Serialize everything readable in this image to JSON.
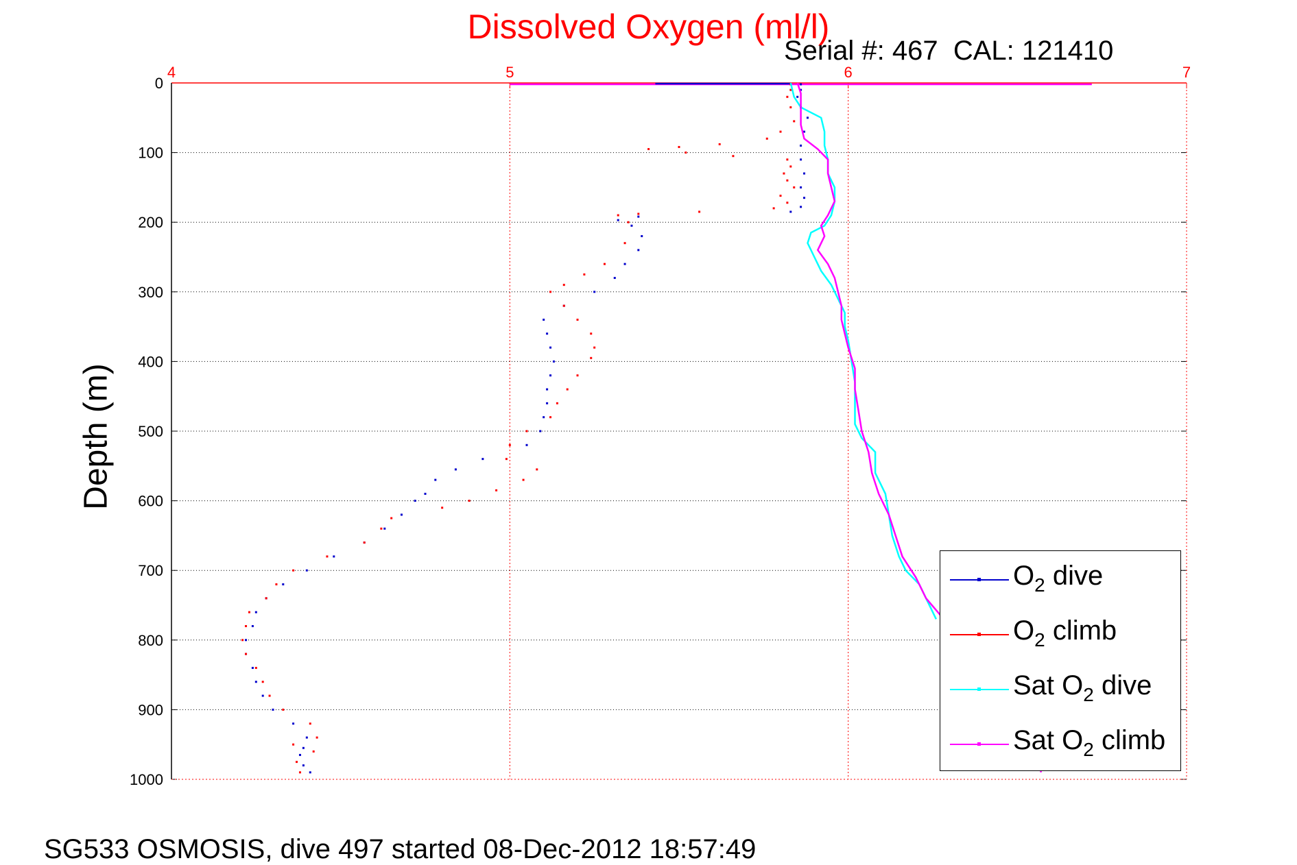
{
  "chart_data": {
    "type": "scatter",
    "title": "Dissolved Oxygen (ml/l)",
    "subtitle": "Serial #: 467  CAL: 121410",
    "ylabel": "Depth (m)",
    "footer": "SG533 OSMOSIS, dive 497 started 08-Dec-2012 18:57:49",
    "xlim": [
      4,
      7
    ],
    "ylim": [
      0,
      1000
    ],
    "y_reversed": true,
    "x_axis_position": "top",
    "x_ticks": [
      4,
      5,
      6,
      7
    ],
    "x_tick_labels": [
      "4",
      "5",
      "6",
      "7"
    ],
    "y_ticks": [
      0,
      100,
      200,
      300,
      400,
      500,
      600,
      700,
      800,
      900,
      1000
    ],
    "y_tick_labels": [
      "0",
      "100",
      "200",
      "300",
      "400",
      "500",
      "600",
      "700",
      "800",
      "900",
      "1000"
    ],
    "grid": true,
    "legend_position": "bottom-right",
    "series": [
      {
        "name": "O2 dive",
        "legend_base": "O",
        "legend_sub": "2",
        "legend_rest": " dive",
        "color": "#0000cc",
        "style": "dots",
        "points": [
          [
            5.86,
            2
          ],
          [
            5.86,
            10
          ],
          [
            5.85,
            20
          ],
          [
            5.86,
            35
          ],
          [
            5.88,
            50
          ],
          [
            5.87,
            70
          ],
          [
            5.86,
            90
          ],
          [
            5.86,
            110
          ],
          [
            5.87,
            130
          ],
          [
            5.86,
            150
          ],
          [
            5.87,
            165
          ],
          [
            5.86,
            178
          ],
          [
            5.83,
            185
          ],
          [
            5.38,
            192
          ],
          [
            5.32,
            197
          ],
          [
            5.36,
            205
          ],
          [
            5.39,
            220
          ],
          [
            5.38,
            240
          ],
          [
            5.34,
            260
          ],
          [
            5.31,
            280
          ],
          [
            5.25,
            300
          ],
          [
            5.16,
            320
          ],
          [
            5.1,
            340
          ],
          [
            5.11,
            360
          ],
          [
            5.12,
            380
          ],
          [
            5.13,
            400
          ],
          [
            5.12,
            420
          ],
          [
            5.11,
            440
          ],
          [
            5.11,
            460
          ],
          [
            5.1,
            480
          ],
          [
            5.09,
            500
          ],
          [
            5.05,
            520
          ],
          [
            4.92,
            540
          ],
          [
            4.84,
            555
          ],
          [
            4.78,
            570
          ],
          [
            4.75,
            590
          ],
          [
            4.72,
            600
          ],
          [
            4.68,
            620
          ],
          [
            4.63,
            640
          ],
          [
            4.57,
            660
          ],
          [
            4.48,
            680
          ],
          [
            4.4,
            700
          ],
          [
            4.33,
            720
          ],
          [
            4.28,
            740
          ],
          [
            4.25,
            760
          ],
          [
            4.24,
            780
          ],
          [
            4.22,
            800
          ],
          [
            4.22,
            820
          ],
          [
            4.24,
            840
          ],
          [
            4.25,
            860
          ],
          [
            4.27,
            880
          ],
          [
            4.3,
            900
          ],
          [
            4.36,
            920
          ],
          [
            4.4,
            940
          ],
          [
            4.39,
            955
          ],
          [
            4.38,
            965
          ],
          [
            4.39,
            980
          ],
          [
            4.41,
            990
          ]
        ]
      },
      {
        "name": "O2 climb",
        "legend_base": "O",
        "legend_sub": "2",
        "legend_rest": " climb",
        "color": "#ff0000",
        "style": "dots",
        "points": [
          [
            5.83,
            2
          ],
          [
            5.83,
            10
          ],
          [
            5.82,
            20
          ],
          [
            5.83,
            35
          ],
          [
            5.84,
            55
          ],
          [
            5.8,
            70
          ],
          [
            5.76,
            80
          ],
          [
            5.62,
            88
          ],
          [
            5.5,
            92
          ],
          [
            5.41,
            95
          ],
          [
            5.52,
            100
          ],
          [
            5.66,
            105
          ],
          [
            5.82,
            110
          ],
          [
            5.83,
            120
          ],
          [
            5.81,
            130
          ],
          [
            5.82,
            140
          ],
          [
            5.84,
            150
          ],
          [
            5.8,
            162
          ],
          [
            5.82,
            172
          ],
          [
            5.78,
            180
          ],
          [
            5.56,
            185
          ],
          [
            5.38,
            188
          ],
          [
            5.32,
            190
          ],
          [
            5.35,
            200
          ],
          [
            5.34,
            230
          ],
          [
            5.28,
            260
          ],
          [
            5.22,
            275
          ],
          [
            5.16,
            290
          ],
          [
            5.12,
            300
          ],
          [
            5.16,
            320
          ],
          [
            5.2,
            340
          ],
          [
            5.24,
            360
          ],
          [
            5.25,
            380
          ],
          [
            5.24,
            395
          ],
          [
            5.2,
            420
          ],
          [
            5.17,
            440
          ],
          [
            5.14,
            460
          ],
          [
            5.12,
            480
          ],
          [
            5.05,
            500
          ],
          [
            5.0,
            520
          ],
          [
            4.99,
            540
          ],
          [
            5.08,
            555
          ],
          [
            5.04,
            570
          ],
          [
            4.96,
            585
          ],
          [
            4.88,
            600
          ],
          [
            4.8,
            610
          ],
          [
            4.65,
            625
          ],
          [
            4.62,
            640
          ],
          [
            4.57,
            660
          ],
          [
            4.46,
            680
          ],
          [
            4.36,
            700
          ],
          [
            4.31,
            720
          ],
          [
            4.28,
            740
          ],
          [
            4.23,
            760
          ],
          [
            4.22,
            780
          ],
          [
            4.21,
            800
          ],
          [
            4.22,
            820
          ],
          [
            4.25,
            840
          ],
          [
            4.27,
            860
          ],
          [
            4.29,
            880
          ],
          [
            4.33,
            900
          ],
          [
            4.41,
            920
          ],
          [
            4.43,
            940
          ],
          [
            4.36,
            950
          ],
          [
            4.42,
            960
          ],
          [
            4.37,
            975
          ],
          [
            4.38,
            990
          ]
        ]
      },
      {
        "name": "Sat O2 dive",
        "legend_base": "Sat O",
        "legend_sub": "2",
        "legend_rest": " dive",
        "color": "#00ffff",
        "style": "line",
        "points": [
          [
            5.83,
            0
          ],
          [
            5.84,
            20
          ],
          [
            5.86,
            35
          ],
          [
            5.92,
            50
          ],
          [
            5.93,
            70
          ],
          [
            5.93,
            90
          ],
          [
            5.94,
            110
          ],
          [
            5.94,
            130
          ],
          [
            5.96,
            150
          ],
          [
            5.96,
            170
          ],
          [
            5.95,
            190
          ],
          [
            5.93,
            205
          ],
          [
            5.89,
            215
          ],
          [
            5.88,
            230
          ],
          [
            5.9,
            250
          ],
          [
            5.92,
            270
          ],
          [
            5.95,
            290
          ],
          [
            5.97,
            310
          ],
          [
            5.99,
            330
          ],
          [
            5.99,
            350
          ],
          [
            6.0,
            370
          ],
          [
            6.01,
            400
          ],
          [
            6.02,
            430
          ],
          [
            6.02,
            460
          ],
          [
            6.02,
            490
          ],
          [
            6.04,
            510
          ],
          [
            6.08,
            530
          ],
          [
            6.08,
            560
          ],
          [
            6.11,
            590
          ],
          [
            6.12,
            620
          ],
          [
            6.13,
            650
          ],
          [
            6.15,
            680
          ],
          [
            6.17,
            700
          ],
          [
            6.21,
            720
          ],
          [
            6.23,
            740
          ],
          [
            6.25,
            760
          ],
          [
            6.26,
            770
          ]
        ]
      },
      {
        "name": "Sat O2 climb",
        "legend_base": "Sat O",
        "legend_sub": "2",
        "legend_rest": " climb",
        "color": "#ff00ff",
        "style": "line",
        "points": [
          [
            5.85,
            0
          ],
          [
            5.86,
            15
          ],
          [
            5.86,
            40
          ],
          [
            5.86,
            60
          ],
          [
            5.87,
            80
          ],
          [
            5.91,
            95
          ],
          [
            5.94,
            110
          ],
          [
            5.94,
            130
          ],
          [
            5.95,
            150
          ],
          [
            5.96,
            170
          ],
          [
            5.94,
            190
          ],
          [
            5.92,
            205
          ],
          [
            5.93,
            220
          ],
          [
            5.91,
            240
          ],
          [
            5.94,
            260
          ],
          [
            5.96,
            280
          ],
          [
            5.97,
            300
          ],
          [
            5.98,
            320
          ],
          [
            5.98,
            340
          ],
          [
            5.99,
            360
          ],
          [
            6.0,
            380
          ],
          [
            6.02,
            410
          ],
          [
            6.02,
            440
          ],
          [
            6.03,
            470
          ],
          [
            6.04,
            500
          ],
          [
            6.06,
            530
          ],
          [
            6.07,
            560
          ],
          [
            6.09,
            590
          ],
          [
            6.12,
            620
          ],
          [
            6.14,
            650
          ],
          [
            6.16,
            680
          ],
          [
            6.2,
            710
          ],
          [
            6.23,
            740
          ],
          [
            6.3,
            780
          ],
          [
            6.36,
            820
          ],
          [
            6.42,
            860
          ],
          [
            6.49,
            900
          ],
          [
            6.54,
            940
          ],
          [
            6.56,
            970
          ],
          [
            6.57,
            990
          ]
        ]
      }
    ],
    "surface_traces": [
      {
        "color": "#ff00ff",
        "x": [
          5.0,
          6.72
        ],
        "y": 2
      },
      {
        "color": "#0000cc",
        "x": [
          5.43,
          5.83
        ],
        "y": 1
      }
    ]
  }
}
